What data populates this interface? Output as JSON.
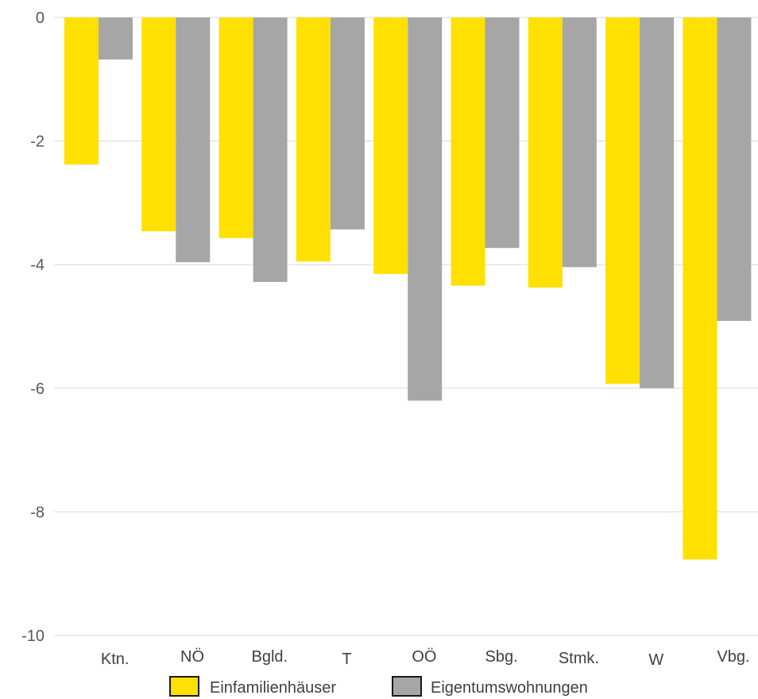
{
  "chart_data": {
    "type": "bar",
    "categories": [
      "Ktn.",
      "NÖ",
      "Bgld.",
      "T",
      "OÖ",
      "Sbg.",
      "Stmk.",
      "W",
      "Vbg."
    ],
    "series": [
      {
        "name": "Einfamilienhäuser",
        "color": "#FFE000",
        "values": [
          -2.38,
          -3.46,
          -3.57,
          -3.95,
          -4.15,
          -4.34,
          -4.37,
          -5.93,
          -8.77
        ]
      },
      {
        "name": "Eigentumswohnungen",
        "color": "#A6A6A6",
        "values": [
          -0.68,
          -3.96,
          -4.28,
          -3.43,
          -6.2,
          -3.73,
          -4.04,
          -6.0,
          -4.91
        ]
      }
    ],
    "y_ticks": [
      0,
      -2,
      -4,
      -6,
      -8,
      -10
    ],
    "ylim": [
      -10,
      0
    ],
    "grid": true,
    "legend_position": "bottom",
    "title": "",
    "xlabel": "",
    "ylabel": ""
  }
}
